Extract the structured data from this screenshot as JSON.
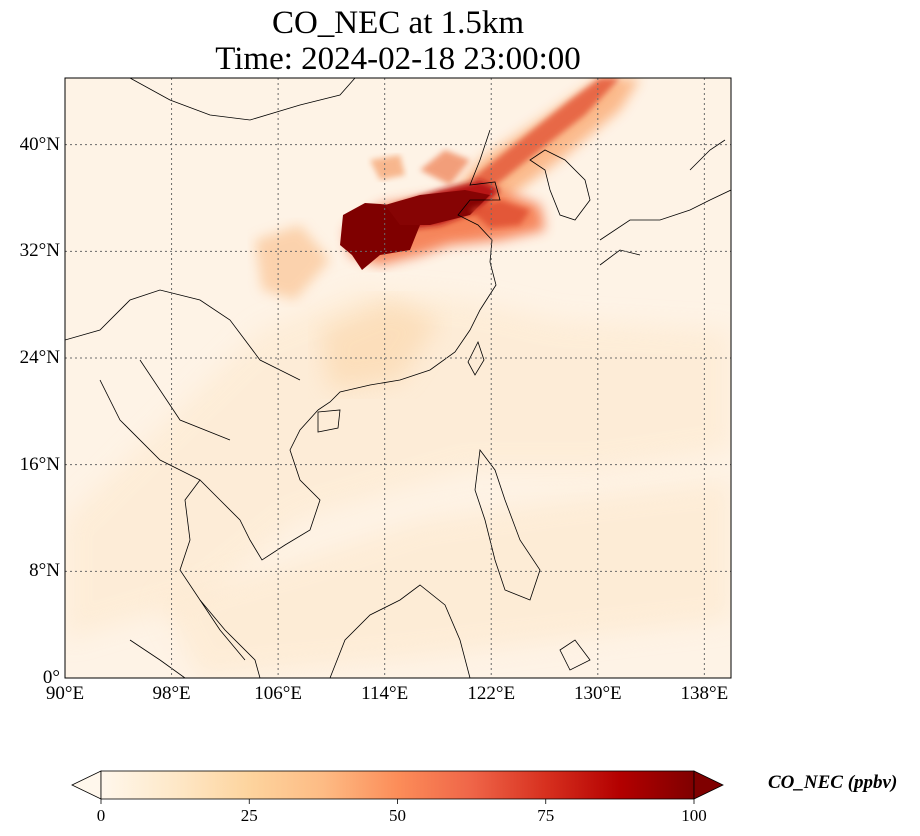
{
  "title_line1": "CO_NEC at 1.5km",
  "title_line2": "Time: 2024-02-18 23:00:00",
  "map": {
    "lon_range": [
      90,
      140
    ],
    "lat_range": [
      0,
      45
    ],
    "lat_ticks": [
      {
        "value": 40,
        "label": "40°N"
      },
      {
        "value": 32,
        "label": "32°N"
      },
      {
        "value": 24,
        "label": "24°N"
      },
      {
        "value": 16,
        "label": "16°N"
      },
      {
        "value": 8,
        "label": "8°N"
      },
      {
        "value": 0,
        "label": "0°"
      }
    ],
    "lon_ticks": [
      {
        "value": 90,
        "label": "90°E"
      },
      {
        "value": 98,
        "label": "98°E"
      },
      {
        "value": 106,
        "label": "106°E"
      },
      {
        "value": 114,
        "label": "114°E"
      },
      {
        "value": 122,
        "label": "122°E"
      },
      {
        "value": 130,
        "label": "130°E"
      },
      {
        "value": 138,
        "label": "138°E"
      }
    ],
    "gridlines": "dotted"
  },
  "colorbar": {
    "label": "CO_NEC (ppbv)",
    "colormap": "OrRd",
    "min": 0,
    "max": 100,
    "extend": "both",
    "ticks": [
      "0",
      "25",
      "50",
      "75",
      "100"
    ],
    "colors": [
      "#fff7ec",
      "#fee8c8",
      "#fdd49e",
      "#fdbb84",
      "#fc8d59",
      "#ef6548",
      "#d7301f",
      "#b30000",
      "#7f0000"
    ]
  }
}
